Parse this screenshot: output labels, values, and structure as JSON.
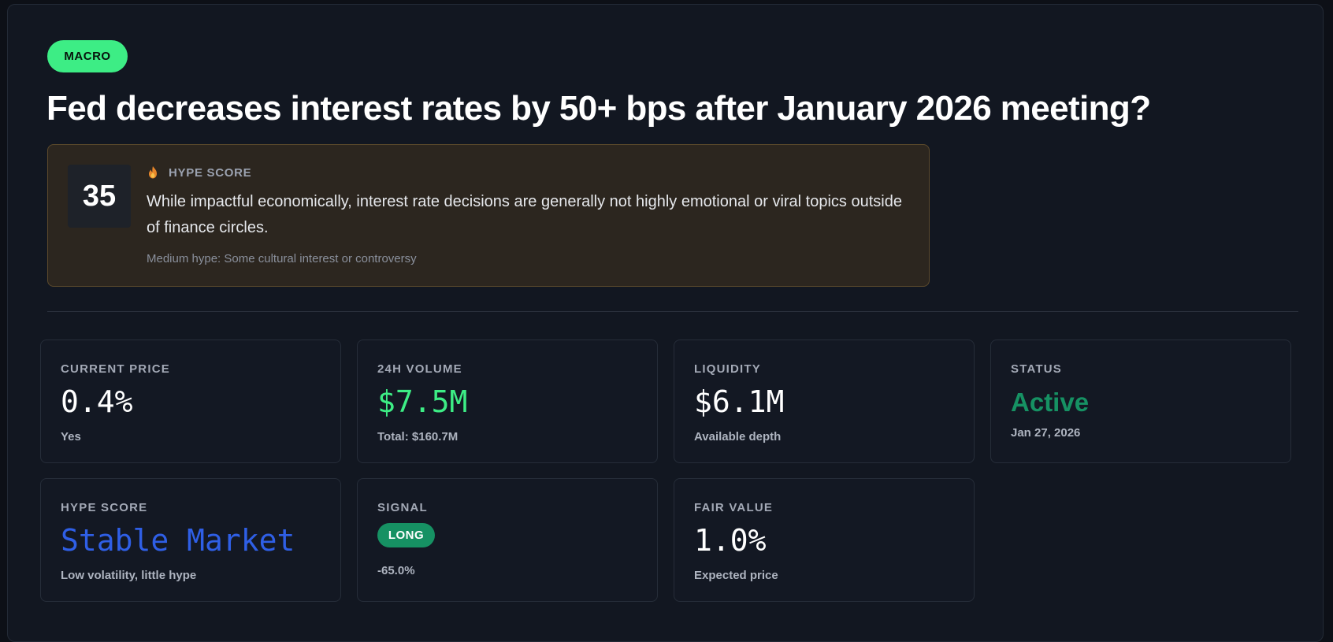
{
  "header": {
    "category_tag": "MACRO",
    "title": "Fed decreases interest rates by 50+ bps after January 2026 meeting?"
  },
  "hype_panel": {
    "score": "35",
    "icon": "flame-icon",
    "label": "HYPE SCORE",
    "description": "While impactful economically, interest rate decisions are generally not highly emotional or viral topics outside of finance circles.",
    "note": "Medium hype: Some cultural interest or controversy"
  },
  "stats": {
    "current_price": {
      "label": "CURRENT PRICE",
      "value": "0.4%",
      "sub": "Yes"
    },
    "volume_24h": {
      "label": "24H VOLUME",
      "value": "$7.5M",
      "sub": "Total: $160.7M"
    },
    "liquidity": {
      "label": "LIQUIDITY",
      "value": "$6.1M",
      "sub": "Available depth"
    },
    "status": {
      "label": "STATUS",
      "value": "Active",
      "sub": "Jan 27, 2026"
    },
    "hype_score": {
      "label": "HYPE SCORE",
      "value": "Stable Market",
      "sub": "Low volatility, little hype"
    },
    "signal": {
      "label": "SIGNAL",
      "badge": "LONG",
      "sub": "-65.0%"
    },
    "fair_value": {
      "label": "FAIR VALUE",
      "value": "1.0%",
      "sub": "Expected price"
    }
  },
  "colors": {
    "accent_green": "#3ded85",
    "status_green": "#169163",
    "hype_blue": "#2f5fe6",
    "panel_bg": "#121721"
  }
}
